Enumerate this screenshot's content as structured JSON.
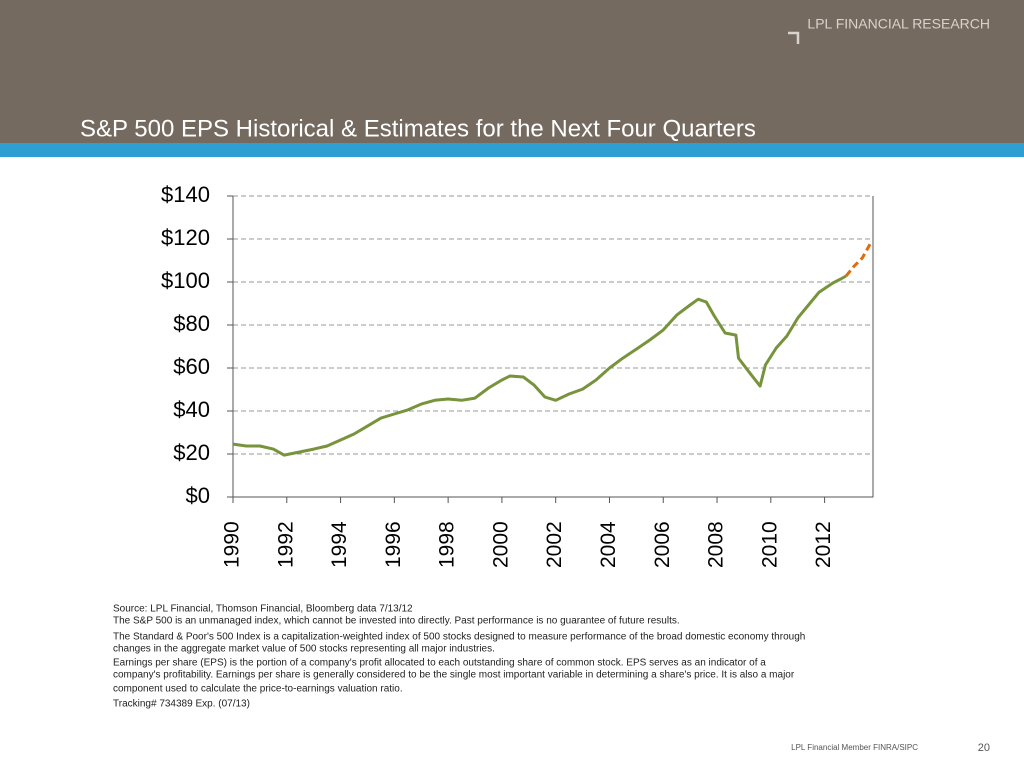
{
  "header": {
    "brand": "LPL FINANCIAL RESEARCH"
  },
  "chart_data": {
    "type": "line",
    "title": "S&P 500 EPS Historical & Estimates for the Next Four Quarters",
    "x": [
      1990.0,
      1990.5,
      1991.0,
      1991.5,
      1991.9,
      1992.5,
      1993.0,
      1993.5,
      1994.0,
      1994.5,
      1995.0,
      1995.5,
      1996.0,
      1996.5,
      1997.0,
      1997.5,
      1998.0,
      1998.5,
      1999.0,
      1999.5,
      2000.0,
      2000.3,
      2000.8,
      2001.2,
      2001.6,
      2002.0,
      2002.5,
      2003.0,
      2003.5,
      2004.0,
      2004.5,
      2005.0,
      2005.5,
      2006.0,
      2006.5,
      2007.0,
      2007.3,
      2007.6,
      2007.9,
      2008.3,
      2008.7,
      2008.8,
      2009.2,
      2009.6,
      2009.8,
      2010.2,
      2010.6,
      2011.0,
      2011.4,
      2011.8,
      2012.3,
      2012.6,
      2012.8,
      2013.1,
      2013.4,
      2013.75
    ],
    "series": [
      {
        "color": "#77933c",
        "dashed": false,
        "values": [
          24.6,
          23.7,
          23.7,
          22.3,
          19.5,
          21,
          22.3,
          23.7,
          26.5,
          29.3,
          33,
          36.7,
          38.6,
          40.5,
          43.2,
          45,
          45.6,
          45,
          46,
          50.7,
          54.4,
          56.3,
          55.8,
          52,
          46.5,
          45,
          47.9,
          50.2,
          54.4,
          60,
          64.6,
          68.8,
          73,
          77.7,
          84.6,
          89.3,
          92,
          90.7,
          84.2,
          76.3,
          75.3,
          64.6,
          58,
          51.6,
          61.4,
          69.3,
          74.9,
          83.2,
          89.3,
          95.3,
          99.5,
          101.4,
          102.8,
          null,
          null,
          null
        ]
      },
      {
        "color": "#e36c09",
        "dashed": true,
        "values": [
          null,
          null,
          null,
          null,
          null,
          null,
          null,
          null,
          null,
          null,
          null,
          null,
          null,
          null,
          null,
          null,
          null,
          null,
          null,
          null,
          null,
          null,
          null,
          null,
          null,
          null,
          null,
          null,
          null,
          null,
          null,
          null,
          null,
          null,
          null,
          null,
          null,
          null,
          null,
          null,
          null,
          null,
          null,
          null,
          null,
          null,
          null,
          null,
          null,
          null,
          null,
          null,
          102.8,
          107.4,
          111.1,
          119
        ]
      }
    ],
    "xlim": [
      1990,
      2013.8
    ],
    "xticks": [
      1990,
      1992,
      1994,
      1996,
      1998,
      2000,
      2002,
      2004,
      2006,
      2008,
      2010,
      2012
    ],
    "ylim": [
      0,
      140
    ],
    "yticks": [
      {
        "value": 0,
        "label": "$0"
      },
      {
        "value": 20,
        "label": "$20"
      },
      {
        "value": 40,
        "label": "$40"
      },
      {
        "value": 60,
        "label": "$60"
      },
      {
        "value": 80,
        "label": "$80"
      },
      {
        "value": 100,
        "label": "$100"
      },
      {
        "value": 120,
        "label": "$120"
      },
      {
        "value": 140,
        "label": "$140"
      }
    ],
    "grid": true
  },
  "footer": {
    "notes": [
      "Source: LPL Financial, Thomson Financial, Bloomberg data 7/13/12",
      "The S&P 500 is an unmanaged index, which cannot be invested into directly. Past performance is no guarantee of future results.",
      "The Standard & Poor's 500 Index is a capitalization-weighted index of 500 stocks designed to measure performance of the broad domestic economy through",
      "changes in the aggregate market value of 500 stocks representing all major industries.",
      "Earnings per share (EPS) is the portion of a company's profit allocated to each outstanding share of common stock. EPS serves as an indicator of a",
      "company's profitability. Earnings per share is generally considered to be the single most important variable in determining a share's price. It is also a major",
      "component used to calculate the price-to-earnings valuation ratio.",
      "Tracking# 734389 Exp. (07/13)"
    ],
    "member": "LPL Financial Member FINRA/SIPC",
    "page": "20"
  }
}
